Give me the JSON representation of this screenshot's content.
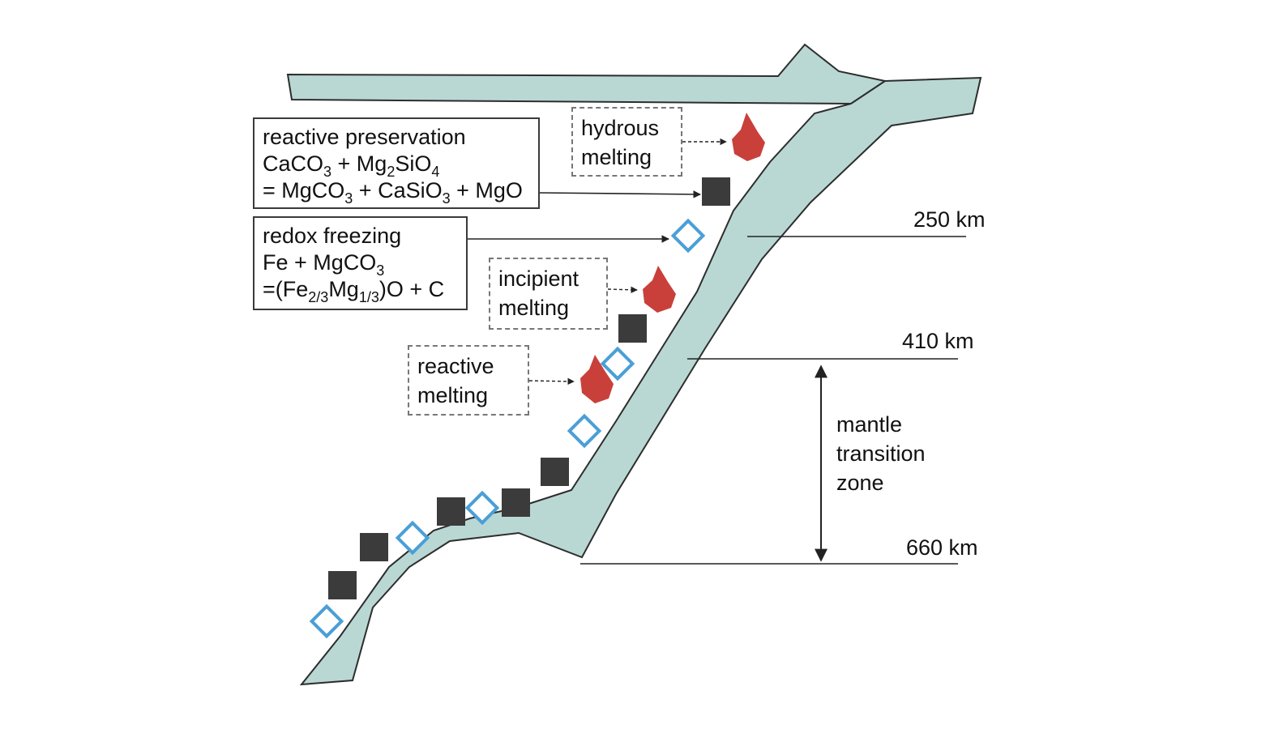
{
  "boxes": {
    "reactive_preservation": {
      "title": "reactive preservation",
      "eq1": {
        "a": "CaCO",
        "a_sub": "3",
        "b": " + Mg",
        "b_sub": "2",
        "c": "SiO",
        "c_sub": "4"
      },
      "eq2": {
        "a": "= MgCO",
        "a_sub": "3",
        "b": " + CaSiO",
        "b_sub": "3",
        "c": " + MgO"
      }
    },
    "redox_freezing": {
      "title": "redox freezing",
      "eq1": {
        "a": "Fe + MgCO",
        "a_sub": "3"
      },
      "eq2": {
        "a": "=(Fe",
        "a_sub": "2/3",
        "b": "Mg",
        "b_sub": "1/3",
        "c": ")O + C"
      }
    },
    "hydrous_melting": {
      "line1": "hydrous",
      "line2": "melting"
    },
    "incipient_melting": {
      "line1": "incipient",
      "line2": "melting"
    },
    "reactive_melting": {
      "line1": "reactive",
      "line2": "melting"
    }
  },
  "depths": {
    "d250": "250 km",
    "d410": "410 km",
    "d660": "660 km"
  },
  "zone_label": {
    "line1": "mantle",
    "line2": "transition",
    "line3": "zone"
  },
  "colors": {
    "slab_fill": "#b9d8d4",
    "slab_stroke": "#2d2d2d",
    "melt": "#c9403a",
    "square": "#3b3b3b",
    "diamond": "#4a9fd6"
  }
}
